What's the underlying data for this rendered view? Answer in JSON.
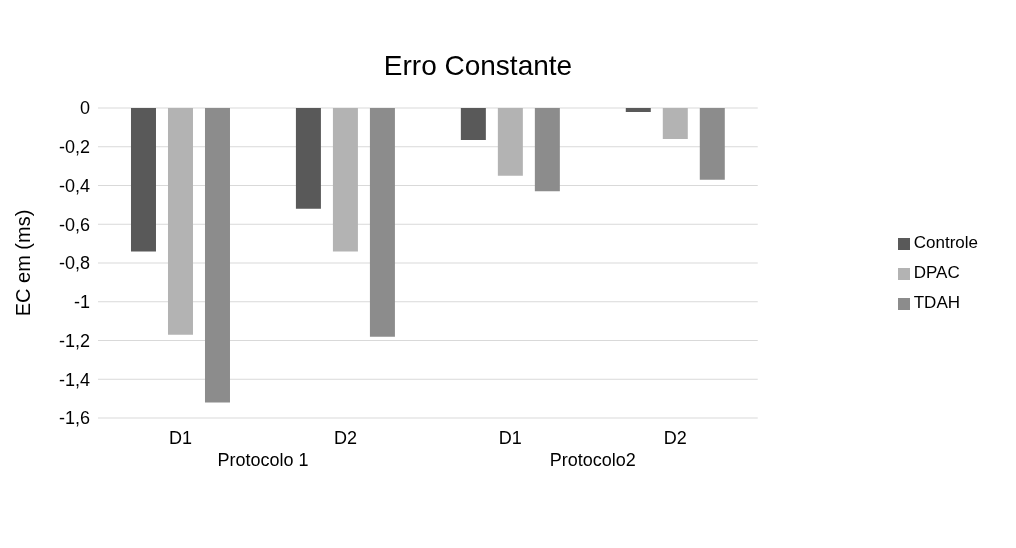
{
  "chart_data": {
    "type": "bar",
    "title": "Erro Constante",
    "ylabel": "EC em (ms)",
    "categories": [
      "D1",
      "D2",
      "D1",
      "D2"
    ],
    "series": [
      {
        "name": "Controle",
        "color": "#595959",
        "values": [
          -0.74,
          -0.52,
          -0.165,
          -0.02
        ]
      },
      {
        "name": "DPAC",
        "color": "#b3b3b3",
        "values": [
          -1.17,
          -0.74,
          -0.35,
          -0.16
        ]
      },
      {
        "name": "TDAH",
        "color": "#8c8c8c",
        "values": [
          -1.52,
          -1.18,
          -0.43,
          -0.37
        ]
      }
    ],
    "ylim": [
      -1.6,
      0
    ],
    "yticks": [
      0,
      {
        "value": -0.2,
        "label": "-0,2"
      },
      {
        "value": -0.4,
        "label": "-0,4"
      },
      {
        "value": -0.6,
        "label": "-0,6"
      },
      {
        "value": -0.8,
        "label": "-0,8"
      },
      -1,
      {
        "value": -1.2,
        "label": "-1,2"
      },
      {
        "value": -1.4,
        "label": "-1,4"
      },
      {
        "value": -1.6,
        "label": "-1,6"
      }
    ],
    "grid": "y",
    "legend": "right",
    "annotations": [
      "Protocolo 1",
      "Protocolo2"
    ]
  }
}
